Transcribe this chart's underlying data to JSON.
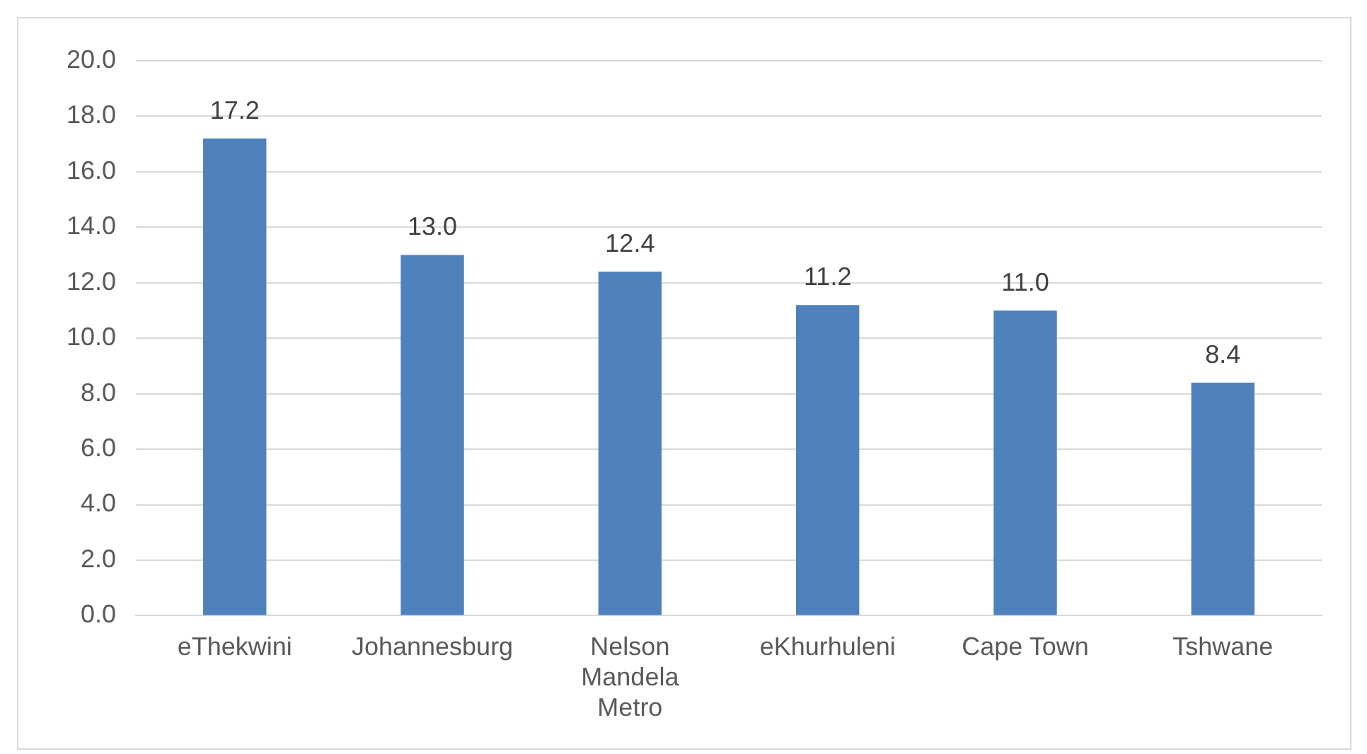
{
  "chart_data": {
    "type": "bar",
    "categories": [
      "eThekwini",
      "Johannesburg",
      "Nelson Mandela Metro",
      "eKhurhuleni",
      "Cape Town",
      "Tshwane"
    ],
    "values": [
      17.2,
      13.0,
      12.4,
      11.2,
      11.0,
      8.4
    ],
    "color": "#4f81bd",
    "value_labels": [
      "17.2",
      "13.0",
      "12.4",
      "11.2",
      "11.0",
      "8.4"
    ],
    "ylim": [
      0,
      20
    ],
    "yticks": [
      {
        "value": 0,
        "label": "0.0"
      },
      {
        "value": 2,
        "label": "2.0"
      },
      {
        "value": 4,
        "label": "4.0"
      },
      {
        "value": 6,
        "label": "6.0"
      },
      {
        "value": 8,
        "label": "8.0"
      },
      {
        "value": 10,
        "label": "10.0"
      },
      {
        "value": 12,
        "label": "12.0"
      },
      {
        "value": 14,
        "label": "14.0"
      },
      {
        "value": 16,
        "label": "16.0"
      },
      {
        "value": 18,
        "label": "18.0"
      },
      {
        "value": 20,
        "label": "20.0"
      }
    ],
    "grid": "y"
  }
}
